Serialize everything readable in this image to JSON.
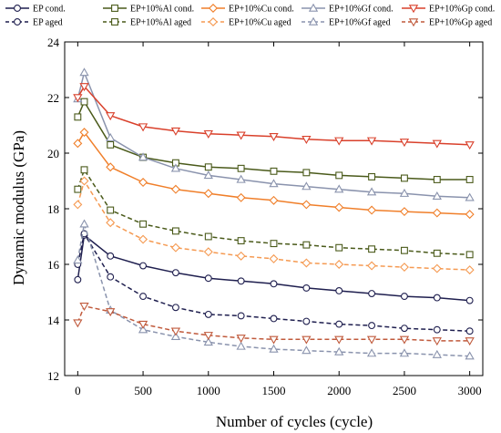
{
  "chart_data": {
    "type": "line",
    "xlabel": "Number of cycles (cycle)",
    "ylabel": "Dynamic modulus (GPa)",
    "xlim": [
      -100,
      3100
    ],
    "ylim": [
      12,
      24
    ],
    "xticks": [
      0,
      500,
      1000,
      1500,
      2000,
      2500,
      3000
    ],
    "yticks": [
      12,
      14,
      16,
      18,
      20,
      22,
      24
    ],
    "xtick_labels": [
      "0",
      "500",
      "1000",
      "1500",
      "2000",
      "2500",
      "3000"
    ],
    "ytick_labels": [
      "12",
      "14",
      "16",
      "18",
      "20",
      "22",
      "24"
    ],
    "grid": false,
    "legend_position": "top",
    "legend_columns": 5,
    "marker_x": [
      0,
      50,
      250,
      500,
      750,
      1000,
      1250,
      1500,
      1750,
      2000,
      2250,
      2500,
      2750,
      3000
    ],
    "series": [
      {
        "name": "EP cond.",
        "color": "#1f1f4f",
        "dashed": false,
        "marker": "circle",
        "x": [
          0,
          50,
          250,
          500,
          750,
          1000,
          1250,
          1500,
          1750,
          2000,
          2250,
          2500,
          2750,
          3000
        ],
        "y": [
          15.45,
          17.05,
          16.3,
          15.95,
          15.7,
          15.5,
          15.4,
          15.3,
          15.15,
          15.05,
          14.95,
          14.85,
          14.8,
          14.7
        ]
      },
      {
        "name": "EP aged",
        "color": "#1f1f4f",
        "dashed": true,
        "marker": "circle",
        "x": [
          0,
          50,
          250,
          500,
          750,
          1000,
          1250,
          1500,
          1750,
          2000,
          2250,
          2500,
          2750,
          3000
        ],
        "y": [
          16.0,
          17.1,
          15.55,
          14.85,
          14.45,
          14.2,
          14.15,
          14.05,
          13.95,
          13.85,
          13.8,
          13.7,
          13.65,
          13.6
        ]
      },
      {
        "name": "EP+10%Al cond.",
        "color": "#4a5a1a",
        "dashed": false,
        "marker": "square",
        "x": [
          0,
          50,
          250,
          500,
          750,
          1000,
          1250,
          1500,
          1750,
          2000,
          2250,
          2500,
          2750,
          3000
        ],
        "y": [
          21.3,
          21.85,
          20.3,
          19.85,
          19.65,
          19.5,
          19.45,
          19.35,
          19.3,
          19.2,
          19.15,
          19.1,
          19.05,
          19.05
        ]
      },
      {
        "name": "EP+10%Al aged",
        "color": "#4a5a1a",
        "dashed": true,
        "marker": "square",
        "x": [
          0,
          50,
          250,
          500,
          750,
          1000,
          1250,
          1500,
          1750,
          2000,
          2250,
          2500,
          2750,
          3000
        ],
        "y": [
          18.7,
          19.4,
          17.95,
          17.45,
          17.2,
          17.0,
          16.85,
          16.75,
          16.7,
          16.6,
          16.55,
          16.5,
          16.4,
          16.35
        ]
      },
      {
        "name": "EP+10%Cu cond.",
        "color": "#f07f2a",
        "dashed": false,
        "marker": "diamond",
        "x": [
          0,
          50,
          250,
          500,
          750,
          1000,
          1250,
          1500,
          1750,
          2000,
          2250,
          2500,
          2750,
          3000
        ],
        "y": [
          20.35,
          20.75,
          19.5,
          18.95,
          18.7,
          18.55,
          18.4,
          18.3,
          18.15,
          18.05,
          17.95,
          17.9,
          17.85,
          17.8
        ]
      },
      {
        "name": "EP+10%Cu aged",
        "color": "#f59a52",
        "dashed": true,
        "marker": "diamond",
        "x": [
          0,
          50,
          250,
          500,
          750,
          1000,
          1250,
          1500,
          1750,
          2000,
          2250,
          2500,
          2750,
          3000
        ],
        "y": [
          18.15,
          19.0,
          17.5,
          16.9,
          16.6,
          16.45,
          16.3,
          16.2,
          16.05,
          16.0,
          15.95,
          15.9,
          15.85,
          15.8
        ]
      },
      {
        "name": "EP+10%Gf cond.",
        "color": "#8a93ad",
        "dashed": false,
        "marker": "triangle-up",
        "x": [
          0,
          50,
          250,
          500,
          750,
          1000,
          1250,
          1500,
          1750,
          2000,
          2250,
          2500,
          2750,
          3000
        ],
        "y": [
          21.95,
          22.9,
          20.55,
          19.85,
          19.45,
          19.2,
          19.05,
          18.9,
          18.8,
          18.7,
          18.6,
          18.55,
          18.45,
          18.4
        ]
      },
      {
        "name": "EP+10%Gf aged",
        "color": "#8a93ad",
        "dashed": true,
        "marker": "triangle-up",
        "x": [
          0,
          50,
          250,
          500,
          750,
          1000,
          1250,
          1500,
          1750,
          2000,
          2250,
          2500,
          2750,
          3000
        ],
        "y": [
          16.15,
          17.45,
          14.35,
          13.65,
          13.4,
          13.2,
          13.05,
          12.95,
          12.9,
          12.85,
          12.8,
          12.8,
          12.75,
          12.7
        ]
      },
      {
        "name": "EP+10%Gp cond.",
        "color": "#d9402b",
        "dashed": false,
        "marker": "triangle-down",
        "x": [
          0,
          50,
          250,
          500,
          750,
          1000,
          1250,
          1500,
          1750,
          2000,
          2250,
          2500,
          2750,
          3000
        ],
        "y": [
          22.0,
          22.4,
          21.35,
          20.95,
          20.8,
          20.7,
          20.65,
          20.6,
          20.5,
          20.45,
          20.45,
          20.4,
          20.35,
          20.3
        ]
      },
      {
        "name": "EP+10%Gp aged",
        "color": "#c05a3c",
        "dashed": true,
        "marker": "triangle-down",
        "x": [
          0,
          50,
          250,
          500,
          750,
          1000,
          1250,
          1500,
          1750,
          2000,
          2250,
          2500,
          2750,
          3000
        ],
        "y": [
          13.9,
          14.5,
          14.3,
          13.85,
          13.6,
          13.45,
          13.35,
          13.3,
          13.3,
          13.3,
          13.3,
          13.3,
          13.25,
          13.25
        ]
      }
    ]
  }
}
